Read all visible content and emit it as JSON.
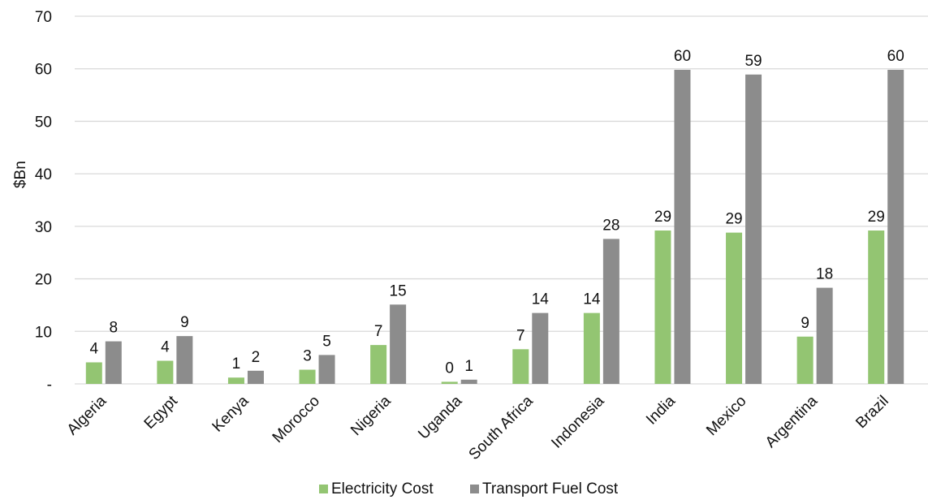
{
  "chart_data": {
    "type": "bar",
    "title": "",
    "xlabel": "",
    "ylabel": "$Bn",
    "ylim": [
      0,
      70
    ],
    "yticks": [
      0,
      10,
      20,
      30,
      40,
      50,
      60,
      70
    ],
    "ytick_labels": [
      "-",
      "10",
      "20",
      "30",
      "40",
      "50",
      "60",
      "70"
    ],
    "grid": true,
    "legend_position": "bottom",
    "categories": [
      "Algeria",
      "Egypt",
      "Kenya",
      "Morocco",
      "Nigeria",
      "Uganda",
      "South Africa",
      "Indonesia",
      "India",
      "Mexico",
      "Argentina",
      "Brazil"
    ],
    "series": [
      {
        "name": "Electricity Cost",
        "color": "#93c572",
        "values": [
          4.1,
          4.4,
          1.2,
          2.7,
          7.4,
          0.4,
          6.6,
          13.5,
          29.2,
          28.8,
          9.0,
          29.2
        ],
        "labels": [
          "4",
          "4",
          "1",
          "3",
          "7",
          "0",
          "7",
          "14",
          "29",
          "29",
          "9",
          "29"
        ]
      },
      {
        "name": "Transport Fuel Cost",
        "color": "#8c8c8c",
        "values": [
          8.1,
          9.1,
          2.5,
          5.5,
          15.1,
          0.8,
          13.5,
          27.6,
          59.8,
          58.9,
          18.3,
          59.8
        ],
        "labels": [
          "8",
          "9",
          "2",
          "5",
          "15",
          "1",
          "14",
          "28",
          "60",
          "59",
          "18",
          "60"
        ]
      }
    ]
  }
}
